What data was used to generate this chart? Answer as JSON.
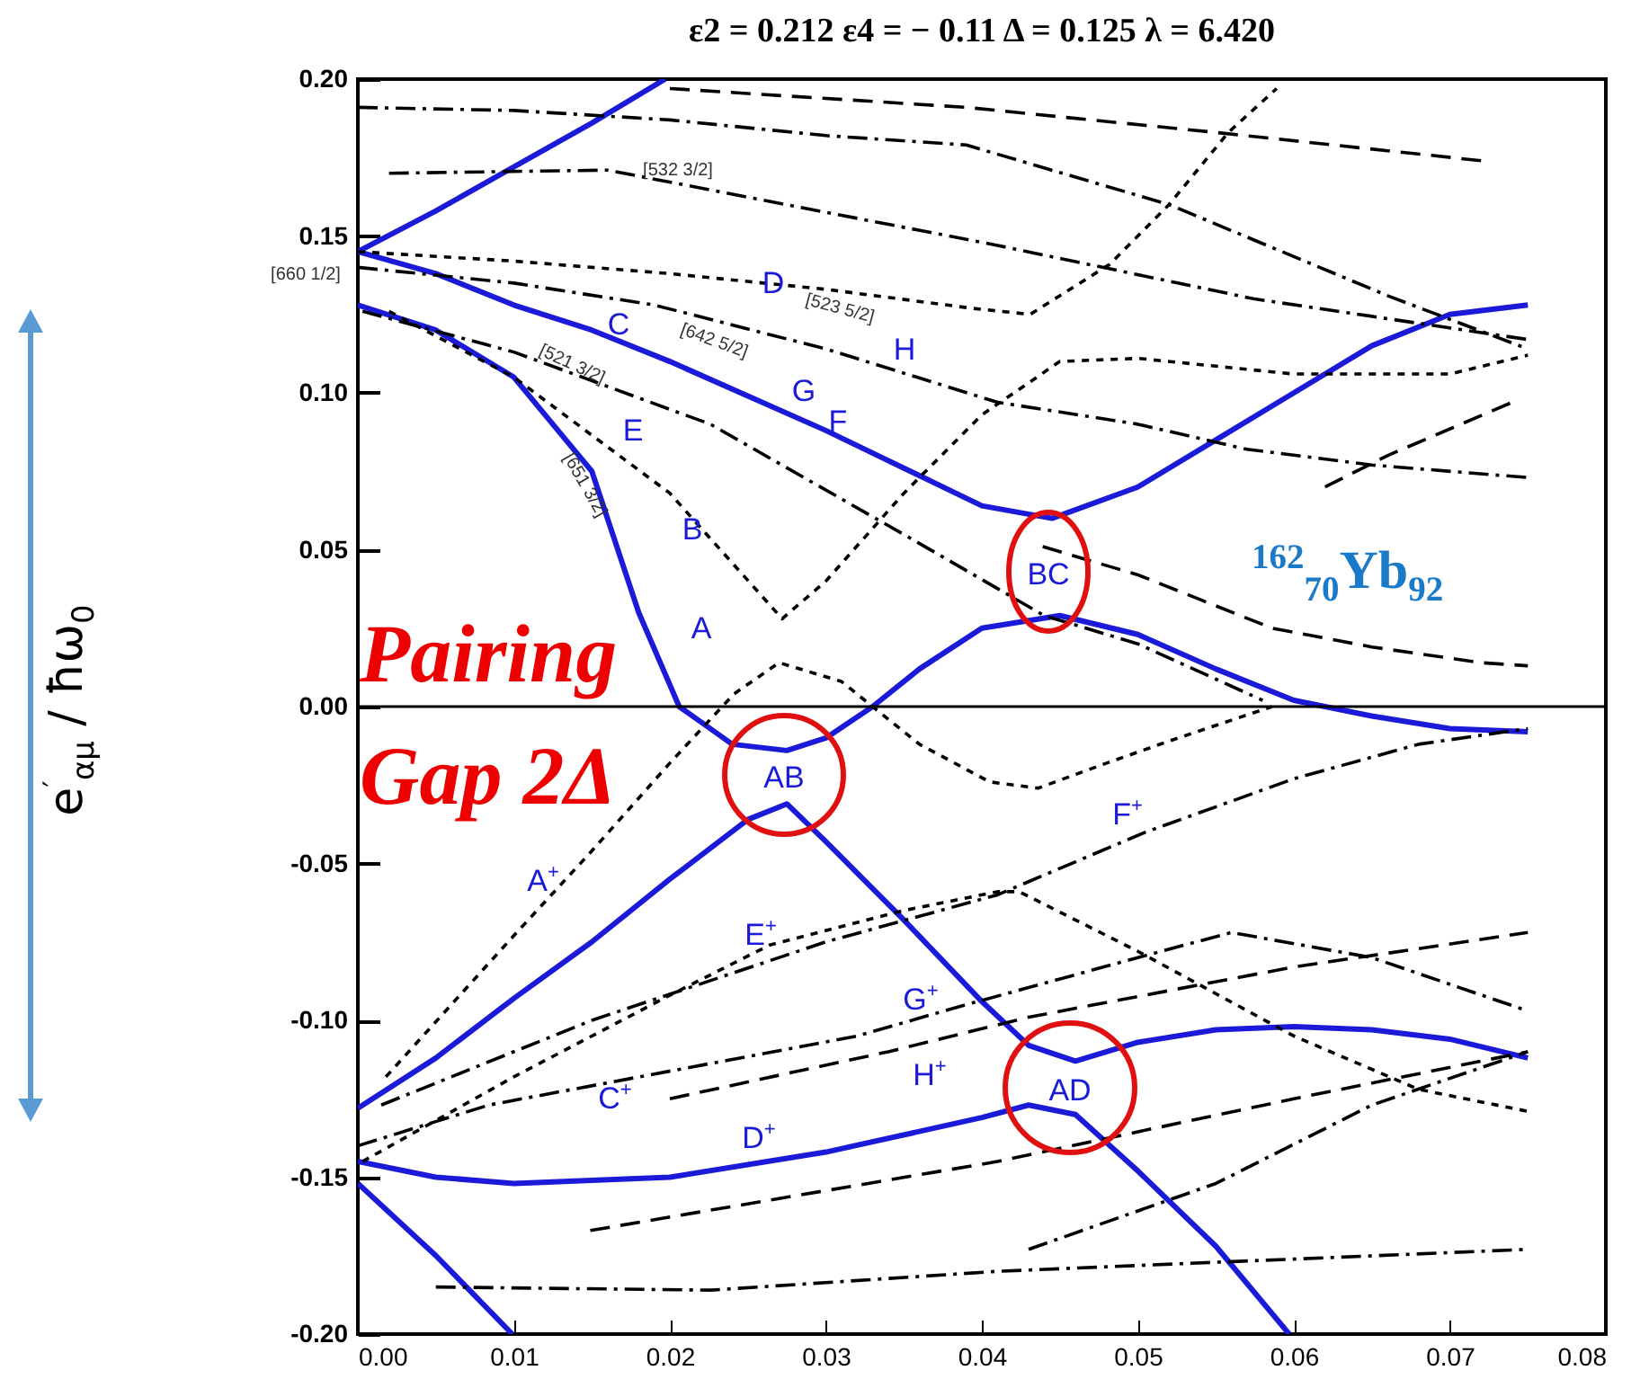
{
  "chart_data": {
    "type": "line",
    "title": "ε2 = 0.212    ε4 = − 0.11    Δ = 0.125    λ = 6.420",
    "ylabel": "e$^{′}$$_{αμ}$ / ħω$_{0}$",
    "xlim": [
      0,
      0.08
    ],
    "xticks": [
      {
        "value": 0,
        "label": "0.00"
      },
      {
        "value": 0.01,
        "label": "0.01"
      },
      {
        "value": 0.02,
        "label": "0.02"
      },
      {
        "value": 0.03,
        "label": "0.03"
      },
      {
        "value": 0.04,
        "label": "0.04"
      },
      {
        "value": 0.05,
        "label": "0.05"
      },
      {
        "value": 0.06,
        "label": "0.06"
      },
      {
        "value": 0.07,
        "label": "0.07"
      },
      {
        "value": 0.08,
        "label": "0.08"
      }
    ],
    "ylim": [
      -0.2,
      0.2
    ],
    "yticks": [
      {
        "value": -0.2,
        "label": "-0.20"
      },
      {
        "value": -0.15,
        "label": "-0.15"
      },
      {
        "value": -0.1,
        "label": "-0.10"
      },
      {
        "value": -0.05,
        "label": "-0.05"
      },
      {
        "value": 0,
        "label": "0.00"
      },
      {
        "value": 0.05,
        "label": "0.05"
      },
      {
        "value": 0.1,
        "label": "0.10"
      },
      {
        "value": 0.15,
        "label": "0.15"
      },
      {
        "value": 0.2,
        "label": "0.20"
      }
    ],
    "grid": false,
    "marker": "none",
    "ref_lines": [
      {
        "axis": "y",
        "value": 0,
        "color": "#000000"
      }
    ],
    "series": [
      {
        "color": "#1a1ad8",
        "line_style": "solid",
        "x": [
          0,
          0.005,
          0.01,
          0.015,
          0.0197
        ],
        "values": [
          0.145,
          0.158,
          0.172,
          0.186,
          0.2
        ]
      },
      {
        "color": "#1a1ad8",
        "line_style": "solid",
        "x": [
          0,
          0.005,
          0.01,
          0.015,
          0.02,
          0.025,
          0.03,
          0.035,
          0.04,
          0.0445,
          0.05,
          0.055,
          0.06,
          0.065,
          0.07,
          0.075
        ],
        "values": [
          0.145,
          0.138,
          0.128,
          0.12,
          0.11,
          0.099,
          0.088,
          0.076,
          0.064,
          0.06,
          0.07,
          0.085,
          0.1,
          0.115,
          0.125,
          0.128
        ]
      },
      {
        "color": "#1a1ad8",
        "line_style": "solid",
        "x": [
          0,
          0.005,
          0.01,
          0.015,
          0.018,
          0.0206,
          0.024,
          0.0275,
          0.03,
          0.033,
          0.036,
          0.04,
          0.045,
          0.05,
          0.055,
          0.06,
          0.065,
          0.07,
          0.075
        ],
        "values": [
          0.128,
          0.12,
          0.105,
          0.075,
          0.03,
          0,
          -0.012,
          -0.014,
          -0.01,
          0,
          0.012,
          0.025,
          0.029,
          0.023,
          0.012,
          0.002,
          -0.003,
          -0.007,
          -0.008
        ]
      },
      {
        "color": "#1a1ad8",
        "line_style": "solid",
        "x": [
          0,
          0.005,
          0.01,
          0.015,
          0.02,
          0.025,
          0.0275,
          0.03,
          0.035,
          0.04,
          0.043,
          0.046,
          0.05,
          0.055,
          0.06,
          0.065,
          0.07,
          0.075
        ],
        "values": [
          -0.128,
          -0.112,
          -0.093,
          -0.075,
          -0.055,
          -0.036,
          -0.031,
          -0.043,
          -0.068,
          -0.094,
          -0.108,
          -0.113,
          -0.107,
          -0.103,
          -0.102,
          -0.103,
          -0.106,
          -0.112
        ]
      },
      {
        "color": "#1a1ad8",
        "line_style": "solid",
        "x": [
          0,
          0.005,
          0.01,
          0.02,
          0.03,
          0.04,
          0.043,
          0.046,
          0.05,
          0.055,
          0.0597
        ],
        "values": [
          -0.145,
          -0.15,
          -0.152,
          -0.15,
          -0.142,
          -0.131,
          -0.127,
          -0.13,
          -0.148,
          -0.172,
          -0.2
        ]
      },
      {
        "color": "#1a1ad8",
        "line_style": "solid",
        "x": [
          0,
          0.005,
          0.0099
        ],
        "values": [
          -0.152,
          -0.175,
          -0.2
        ]
      },
      {
        "color": "#000000",
        "line_style": "dotted",
        "x": [
          0,
          0.01,
          0.02,
          0.03,
          0.0393,
          0.0431,
          0.0482,
          0.052,
          0.0558,
          0.0589
        ],
        "values": [
          0.145,
          0.142,
          0.138,
          0.133,
          0.127,
          0.125,
          0.141,
          0.16,
          0.183,
          0.197
        ]
      },
      {
        "color": "#000000",
        "line_style": "dotted",
        "x": [
          0.002,
          0.01,
          0.02,
          0.0272,
          0.03,
          0.035,
          0.04,
          0.045,
          0.05,
          0.06,
          0.07,
          0.075
        ],
        "values": [
          0.126,
          0.105,
          0.068,
          0.028,
          0.04,
          0.068,
          0.093,
          0.11,
          0.111,
          0.106,
          0.106,
          0.112
        ]
      },
      {
        "color": "#000000",
        "line_style": "dotted",
        "x": [
          0.0018,
          0.01,
          0.015,
          0.02,
          0.0241,
          0.027,
          0.031,
          0.036,
          0.0405,
          0.0436,
          0.048,
          0.052,
          0.0586
        ],
        "values": [
          -0.118,
          -0.073,
          -0.046,
          -0.018,
          0.004,
          0.014,
          0.008,
          -0.012,
          -0.024,
          -0.026,
          -0.018,
          -0.011,
          0
        ]
      },
      {
        "color": "#000000",
        "line_style": "dotted",
        "x": [
          0.0003,
          0.01,
          0.02,
          0.0264,
          0.035,
          0.041,
          0.0424,
          0.05,
          0.06,
          0.068,
          0.075
        ],
        "values": [
          -0.145,
          -0.118,
          -0.092,
          -0.076,
          -0.065,
          -0.059,
          -0.059,
          -0.078,
          -0.105,
          -0.122,
          -0.129
        ]
      },
      {
        "color": "#000000",
        "line_style": "dashdot",
        "x": [
          0,
          0.01,
          0.019,
          0.03,
          0.041,
          0.05,
          0.057,
          0.065,
          0.075
        ],
        "values": [
          0.14,
          0.135,
          0.128,
          0.114,
          0.097,
          0.09,
          0.082,
          0.077,
          0.073
        ]
      },
      {
        "color": "#000000",
        "line_style": "dashdot",
        "x": [
          0.0003,
          0.01,
          0.0226,
          0.0353,
          0.044,
          0.05,
          0.058
        ],
        "values": [
          0.126,
          0.113,
          0.09,
          0.054,
          0.029,
          0.02,
          0.002
        ]
      },
      {
        "color": "#000000",
        "line_style": "dashdot",
        "x": [
          0,
          0.01,
          0.02,
          0.03,
          0.039,
          0.052,
          0.066,
          0.075
        ],
        "values": [
          0.191,
          0.19,
          0.187,
          0.182,
          0.179,
          0.16,
          0.131,
          0.114
        ]
      },
      {
        "color": "#000000",
        "line_style": "dashdot",
        "x": [
          0.002,
          0.016,
          0.041,
          0.0574,
          0.075
        ],
        "values": [
          0.17,
          0.171,
          0.147,
          0.13,
          0.117
        ]
      },
      {
        "color": "#000000",
        "line_style": "dashed",
        "x": [
          0.02,
          0.039,
          0.055,
          0.072
        ],
        "values": [
          0.197,
          0.191,
          0.183,
          0.174
        ]
      },
      {
        "color": "#000000",
        "line_style": "dashed",
        "x": [
          0.0439,
          0.05,
          0.0586,
          0.065,
          0.072,
          0.075
        ],
        "values": [
          0.051,
          0.042,
          0.025,
          0.019,
          0.014,
          0.013
        ]
      },
      {
        "color": "#000000",
        "line_style": "dashed",
        "x": [
          0.062,
          0.066,
          0.074
        ],
        "values": [
          0.07,
          0.08,
          0.097
        ]
      },
      {
        "color": "#000000",
        "line_style": "dashdot",
        "x": [
          0.0015,
          0.015,
          0.03,
          0.041,
          0.0505,
          0.06,
          0.068,
          0.075
        ],
        "values": [
          -0.127,
          -0.1,
          -0.075,
          -0.06,
          -0.04,
          -0.023,
          -0.012,
          -0.007
        ]
      },
      {
        "color": "#000000",
        "line_style": "dashdot",
        "x": [
          0,
          0.0084,
          0.032,
          0.039,
          0.05,
          0.056,
          0.065,
          0.075
        ],
        "values": [
          -0.14,
          -0.127,
          -0.105,
          -0.095,
          -0.08,
          -0.072,
          -0.08,
          -0.097
        ]
      },
      {
        "color": "#000000",
        "line_style": "dashed",
        "x": [
          0.02,
          0.034,
          0.043,
          0.06,
          0.075
        ],
        "values": [
          -0.125,
          -0.11,
          -0.099,
          -0.083,
          -0.072
        ]
      },
      {
        "color": "#000000",
        "line_style": "dashed",
        "x": [
          0.0149,
          0.041,
          0.06,
          0.075
        ],
        "values": [
          -0.167,
          -0.145,
          -0.125,
          -0.11
        ]
      },
      {
        "color": "#000000",
        "line_style": "dashdot",
        "x": [
          0.005,
          0.0226,
          0.041,
          0.075
        ],
        "values": [
          -0.185,
          -0.186,
          -0.18,
          -0.173
        ]
      },
      {
        "color": "#000000",
        "line_style": "dashdot",
        "x": [
          0.043,
          0.055,
          0.065,
          0.075
        ],
        "values": [
          -0.173,
          -0.152,
          -0.127,
          -0.11
        ]
      }
    ],
    "annotations": [
      "Pairing Gap 2Δ",
      "$^{162}$$_{70}$Yb$_{92}$",
      "[532 3/2]",
      "[660 1/2]",
      "[523 5/2]",
      "[642 5/2]",
      "[521 3/2]",
      "[651 3/2]",
      "D",
      "H",
      "C",
      "G",
      "E",
      "F",
      "B",
      "A",
      "A$^{+}$",
      "E$^{+}$",
      "G$^{+}$",
      "H$^{+}$",
      "C$^{+}$",
      "D$^{+}$",
      "F$^{+}$",
      "BC",
      "AB",
      "AD"
    ]
  }
}
